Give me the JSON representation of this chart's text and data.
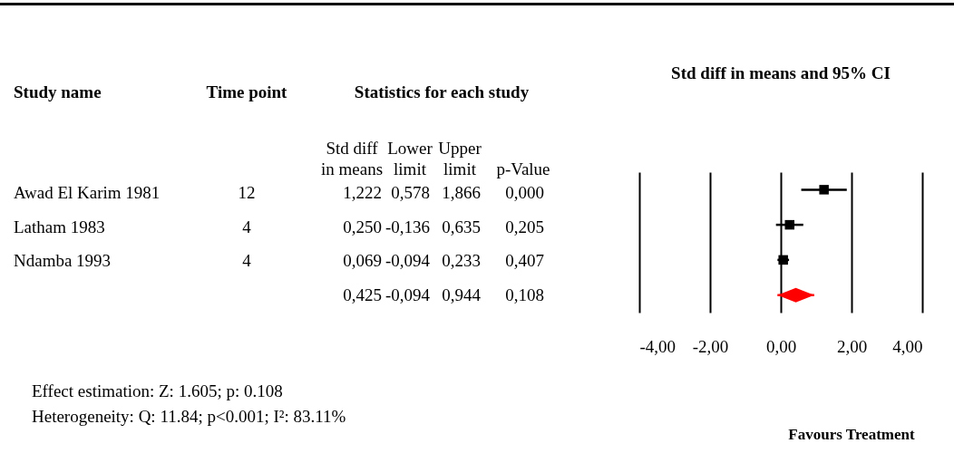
{
  "chart_data": [
    {
      "type": "other",
      "title": "Statistics for each study",
      "ylabel": "Study name",
      "categories": [
        "Time point",
        "Std diff\nin means",
        "Lower\nlimit",
        "Upper\nlimit",
        "p-Value"
      ],
      "y_categories": [
        "Awad El Karim 1981",
        "Latham 1983",
        "Ndamba 1993",
        null
      ],
      "cell_labels": [
        [
          "12",
          "1,222",
          "0,578",
          "1,866",
          "0,000"
        ],
        [
          "4",
          "0,250",
          "-0,136",
          "0,635",
          "0,205"
        ],
        [
          "4",
          "0,069",
          "-0,094",
          "0,233",
          "0,407"
        ],
        [
          null,
          "0,425",
          "-0,094",
          "0,944",
          "0,108"
        ]
      ],
      "annotations": [
        "Effect estimation: Z: 1.605; p: 0.108",
        "Heterogeneity: Q: 11.84; p<0.001; I²: 83.11%"
      ]
    },
    {
      "type": "scatter",
      "orientation": "horizontal",
      "title": "Std diff in means and 95% CI",
      "categories": [
        null,
        null,
        null,
        null
      ],
      "series": [
        {
          "color": "#000000",
          "marker": "square",
          "values": [
            1.222,
            0.25,
            0.069,
            null
          ],
          "errors": [
            [
              0.578,
              1.866
            ],
            [
              -0.136,
              0.635
            ],
            [
              -0.094,
              0.233
            ],
            null
          ]
        },
        {
          "color": "#ff0000",
          "marker": "diamond",
          "values": [
            null,
            null,
            null,
            0.425
          ],
          "errors": [
            null,
            null,
            null,
            [
              -0.094,
              0.944
            ]
          ]
        }
      ],
      "xlim": [
        -4,
        4
      ],
      "xticks": [
        {
          "value": -4,
          "label": "-4,00"
        },
        {
          "value": -2,
          "label": "-2,00"
        },
        {
          "value": 0,
          "label": "0,00"
        },
        {
          "value": 2,
          "label": "2,00"
        },
        {
          "value": 4,
          "label": "4,00"
        }
      ],
      "grid": "x",
      "annotations": [
        "Favours Treatment"
      ]
    }
  ]
}
